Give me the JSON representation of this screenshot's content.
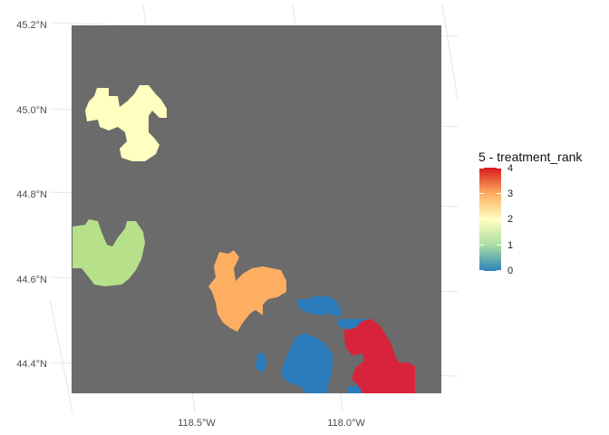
{
  "map": {
    "background_color": "#6b6b6b",
    "lat_labels": [
      "45.2°N",
      "45.0°N",
      "44.8°N",
      "44.6°N",
      "44.4°N"
    ],
    "lon_labels": [
      "118.5°W",
      "118.0°W"
    ],
    "regions": [
      {
        "name": "north-patch",
        "treatment_rank": 2,
        "color": "#ffffbf"
      },
      {
        "name": "west-patch",
        "treatment_rank": 1,
        "color": "#b6e08a"
      },
      {
        "name": "central-patch",
        "treatment_rank": 3,
        "color": "#fdae61"
      },
      {
        "name": "southeast-blue-patch",
        "treatment_rank": 0,
        "color": "#2b7bba"
      },
      {
        "name": "southeast-red-patch",
        "treatment_rank": 4,
        "color": "#d7243a"
      }
    ]
  },
  "legend": {
    "title": "5 - treatment_rank",
    "tick_labels": [
      "4",
      "3",
      "2",
      "1",
      "0"
    ],
    "colors": [
      "#2b83ba",
      "#abdda4",
      "#ffffbf",
      "#fdae61",
      "#d7191c"
    ]
  }
}
